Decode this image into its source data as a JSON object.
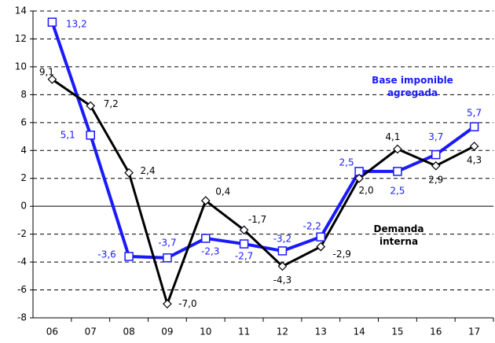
{
  "chart_data": {
    "type": "line",
    "categories": [
      "06",
      "07",
      "08",
      "09",
      "10",
      "11",
      "12",
      "13",
      "14",
      "15",
      "16",
      "17"
    ],
    "series": [
      {
        "name": "Base imponible agregada",
        "color": "#1a1aff",
        "marker": "square",
        "values": [
          13.2,
          5.1,
          -3.6,
          -3.7,
          -2.3,
          -2.7,
          -3.2,
          -2.2,
          2.5,
          2.5,
          3.7,
          5.7
        ],
        "value_labels": [
          "13,2",
          "5,1",
          "-3,6",
          "-3,7",
          "-2,3",
          "-2,7",
          "-3,2",
          "-2,2",
          "2,5",
          "2,5",
          "3,7",
          "5,7"
        ]
      },
      {
        "name": "Demanda interna",
        "color": "#000000",
        "marker": "diamond",
        "values": [
          9.1,
          7.2,
          2.4,
          -7.0,
          0.4,
          -1.7,
          -4.3,
          -2.9,
          2.0,
          4.1,
          2.9,
          4.3
        ],
        "value_labels": [
          "9,1",
          "7,2",
          "2,4",
          "-7,0",
          "0,4",
          "-1,7",
          "-4,3",
          "-2,9",
          "2,0",
          "4,1",
          "2,9",
          "4,3"
        ]
      }
    ],
    "ylim": [
      -8,
      14
    ],
    "yticks": [
      -8,
      -6,
      -4,
      -2,
      0,
      2,
      4,
      6,
      8,
      10,
      12,
      14
    ],
    "grid": true
  }
}
